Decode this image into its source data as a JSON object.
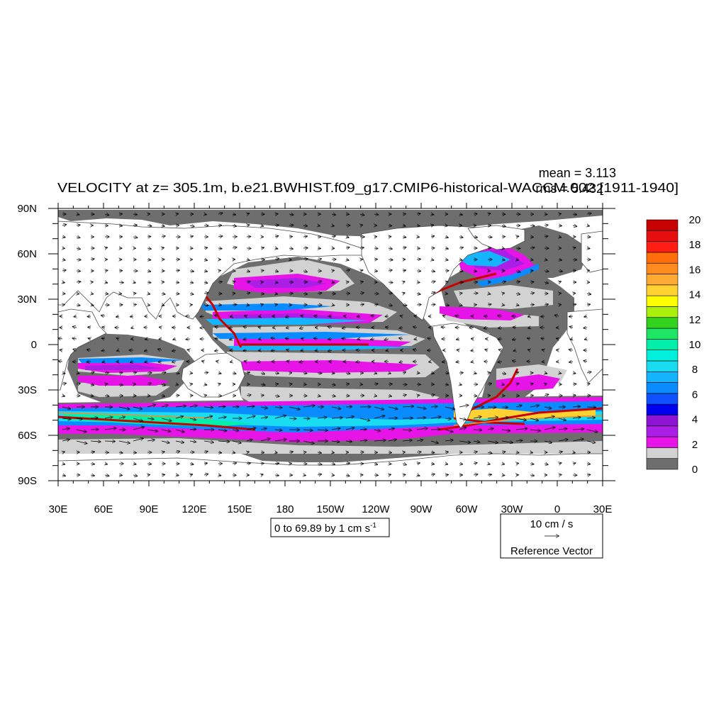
{
  "chart_data": {
    "type": "heatmap",
    "title": "VELOCITY at z= 305.1m, b.e21.BWHIST.f09_g17.CMIP6-historical-WACCM.002 [1911-1940]",
    "stats": {
      "mean": "mean = 3.113",
      "rms": "rms = 5.432"
    },
    "x_ticks": [
      "30E",
      "60E",
      "90E",
      "120E",
      "150E",
      "180",
      "150W",
      "120W",
      "90W",
      "60W",
      "30W",
      "0",
      "30E"
    ],
    "y_ticks": [
      "90N",
      "60N",
      "30N",
      "0",
      "30S",
      "60S",
      "90S"
    ],
    "xlim": [
      30,
      390
    ],
    "ylim": [
      -90,
      90
    ],
    "colorbar": {
      "labels": [
        "0",
        "2",
        "4",
        "6",
        "8",
        "10",
        "12",
        "14",
        "16",
        "18",
        "20"
      ],
      "colors": [
        "#6e6e6e",
        "#d2d2d2",
        "#e614e6",
        "#aa1ee6",
        "#8c14d2",
        "#0000f0",
        "#0f50ff",
        "#0a8cff",
        "#14b4ff",
        "#19dcf0",
        "#00f0dc",
        "#00f0aa",
        "#1ee664",
        "#32d21e",
        "#aaf00a",
        "#ffff00",
        "#ffd232",
        "#ffaa32",
        "#ff8c1e",
        "#ff6e0a",
        "#ff1e14",
        "#e60f0f",
        "#c80000"
      ]
    },
    "contour_info": {
      "prefix": "0 to 69.89 by 1 cm s",
      "superscript": "-1"
    },
    "reference_vector": {
      "magnitude": "10 cm / s",
      "label": "Reference Vector"
    }
  }
}
